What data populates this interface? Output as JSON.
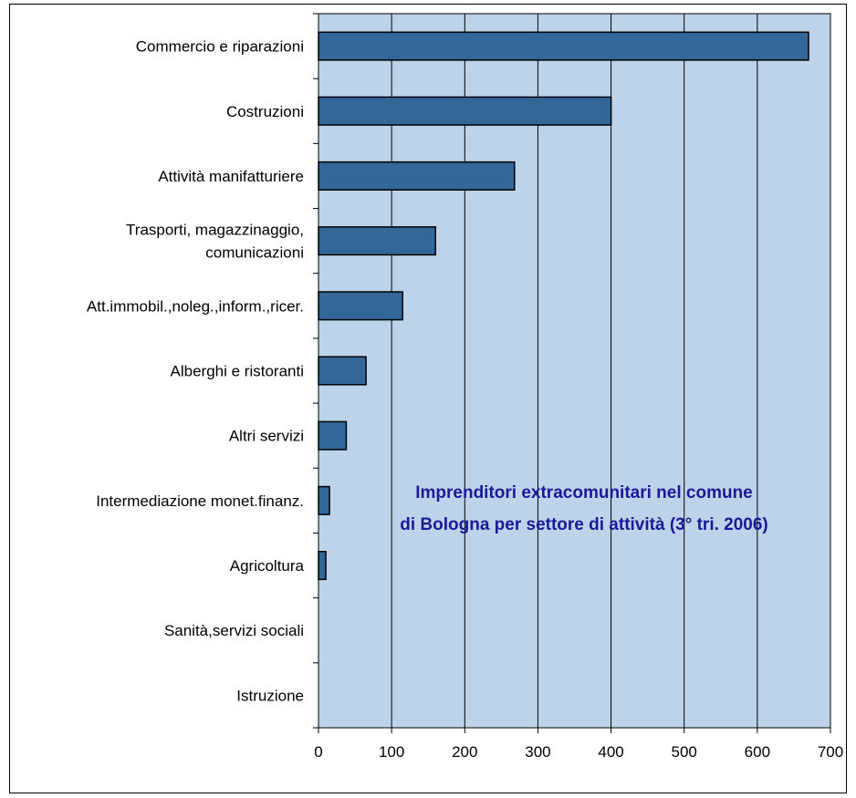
{
  "chart_data": {
    "type": "bar",
    "orientation": "horizontal",
    "title_lines": [
      "Imprenditori extracomunitari nel comune",
      "di Bologna  per settore di attività (3° tri. 2006)"
    ],
    "categories": [
      [
        "Commercio e riparazioni"
      ],
      [
        "Costruzioni"
      ],
      [
        "Attività manifatturiere"
      ],
      [
        "Trasporti, magazzinaggio,",
        "comunicazioni"
      ],
      [
        "Att.immobil.,noleg.,inform.,ricer."
      ],
      [
        "Alberghi e ristoranti"
      ],
      [
        "Altri servizi"
      ],
      [
        "Intermediazione monet.finanz."
      ],
      [
        "Agricoltura"
      ],
      [
        "Sanità,servizi sociali"
      ],
      [
        "Istruzione"
      ]
    ],
    "values": [
      670,
      400,
      268,
      160,
      115,
      65,
      38,
      15,
      10,
      0,
      0
    ],
    "xlim": [
      0,
      700
    ],
    "xticks": [
      "0",
      "100",
      "200",
      "300",
      "400",
      "500",
      "600",
      "700"
    ],
    "grid": true,
    "colors": {
      "bar": "#336699",
      "bar_edge": "#000000",
      "plot_bg": "#bdd3e9",
      "title": "#1a1a99"
    }
  }
}
